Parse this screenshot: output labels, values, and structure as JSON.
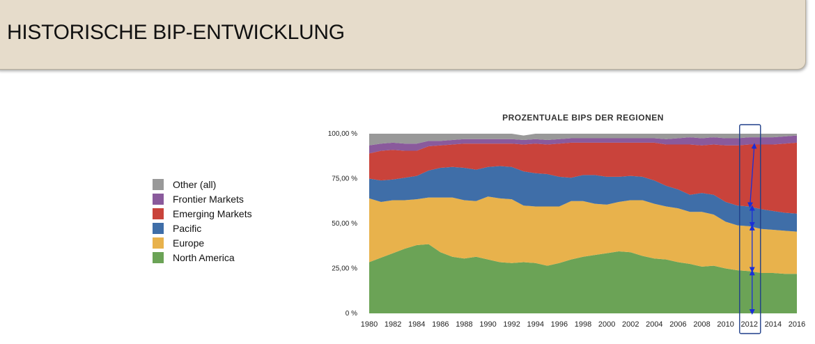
{
  "header": {
    "title": "HISTORISCHE BIP-ENTWICKLUNG"
  },
  "chart_data": {
    "type": "area",
    "stacked": true,
    "title": "PROZENTUALE BIPS DER REGIONEN",
    "xlabel": "",
    "ylabel": "",
    "ylim": [
      0,
      100
    ],
    "x": [
      1980,
      1981,
      1982,
      1983,
      1984,
      1985,
      1986,
      1987,
      1988,
      1989,
      1990,
      1991,
      1992,
      1993,
      1994,
      1995,
      1996,
      1997,
      1998,
      1999,
      2000,
      2001,
      2002,
      2003,
      2004,
      2005,
      2006,
      2007,
      2008,
      2009,
      2010,
      2011,
      2012,
      2013,
      2014,
      2015,
      2016
    ],
    "x_tick_labels": [
      "1980",
      "1982",
      "1984",
      "1986",
      "1988",
      "1990",
      "1992",
      "1994",
      "1996",
      "1998",
      "2000",
      "2002",
      "2004",
      "2006",
      "2008",
      "2010",
      "2012",
      "2014",
      "2016"
    ],
    "y_tick_labels": [
      "0 %",
      "25,00 %",
      "50,00 %",
      "75,00 %",
      "100,00 %"
    ],
    "legend_position": "left",
    "series": [
      {
        "name": "North America",
        "color": "#6ba356",
        "values": [
          28.5,
          31,
          33.5,
          36,
          38,
          38.5,
          34,
          31.5,
          30.5,
          31.5,
          30,
          28.5,
          28,
          28.5,
          28,
          26.5,
          28,
          30,
          31.5,
          32.5,
          33.5,
          34.5,
          34,
          32,
          30.5,
          30,
          28.5,
          27.5,
          26,
          26.5,
          25,
          24,
          23.5,
          22.5,
          22.5,
          22,
          22
        ]
      },
      {
        "name": "Europe",
        "color": "#e8b24c",
        "values": [
          35.5,
          31,
          29.5,
          27,
          25.5,
          26,
          30.5,
          33,
          32.5,
          31,
          35,
          35.5,
          35.5,
          31.5,
          31.5,
          33,
          31.5,
          32.5,
          31,
          28.5,
          27,
          27.5,
          29,
          31,
          30.5,
          29.5,
          30,
          29,
          30.5,
          28.5,
          26,
          25,
          25,
          24.5,
          24,
          24,
          23.5
        ]
      },
      {
        "name": "Pacific",
        "color": "#3f6ea8",
        "values": [
          11,
          12,
          11.5,
          12.5,
          13,
          15,
          16.5,
          17,
          18,
          17.5,
          16.5,
          18,
          18,
          19,
          18.5,
          18,
          16.5,
          13,
          14.5,
          16,
          15.5,
          14,
          13.5,
          13,
          13,
          11.5,
          10.5,
          9.5,
          10.5,
          11,
          11,
          11,
          11,
          11,
          10.5,
          10,
          10
        ]
      },
      {
        "name": "Emerging Markets",
        "color": "#c9433b",
        "values": [
          14,
          16.5,
          16.5,
          15,
          14,
          13.5,
          12.5,
          12.5,
          13.5,
          14.5,
          13,
          12.5,
          13,
          15,
          16.5,
          16.5,
          18.5,
          19.5,
          18,
          18,
          19,
          19,
          18.5,
          19,
          21,
          23,
          25,
          28,
          26.5,
          28,
          31.5,
          33.5,
          34.5,
          36,
          37,
          38.5,
          39.5
        ]
      },
      {
        "name": "Frontier Markets",
        "color": "#8a5a9c",
        "values": [
          4.5,
          4,
          4,
          4,
          4,
          3,
          2.5,
          2.5,
          2.5,
          2.5,
          2.5,
          2.5,
          2.5,
          2.5,
          2.5,
          2.5,
          2.5,
          2.5,
          2.5,
          2.5,
          2.5,
          2.5,
          2.5,
          2.5,
          2.5,
          3,
          3.5,
          4,
          4,
          4,
          4,
          4,
          4,
          4,
          4,
          4,
          4
        ]
      },
      {
        "name": "Other (all)",
        "color": "#999999",
        "values": [
          6.5,
          5.5,
          5,
          5.5,
          5.5,
          4,
          4,
          3.5,
          3,
          3,
          3,
          3,
          3,
          2.5,
          3,
          3.5,
          3,
          2.5,
          2.5,
          2.5,
          2.5,
          2.5,
          2.5,
          2.5,
          2.5,
          3,
          2.5,
          2,
          2.5,
          2,
          2.5,
          2.5,
          2,
          2,
          2,
          1.5,
          1
        ]
      }
    ],
    "annotations": [
      {
        "type": "highlight-box",
        "x": 2012,
        "description": "blue double arrows marking segment sizes at 2012"
      }
    ]
  }
}
